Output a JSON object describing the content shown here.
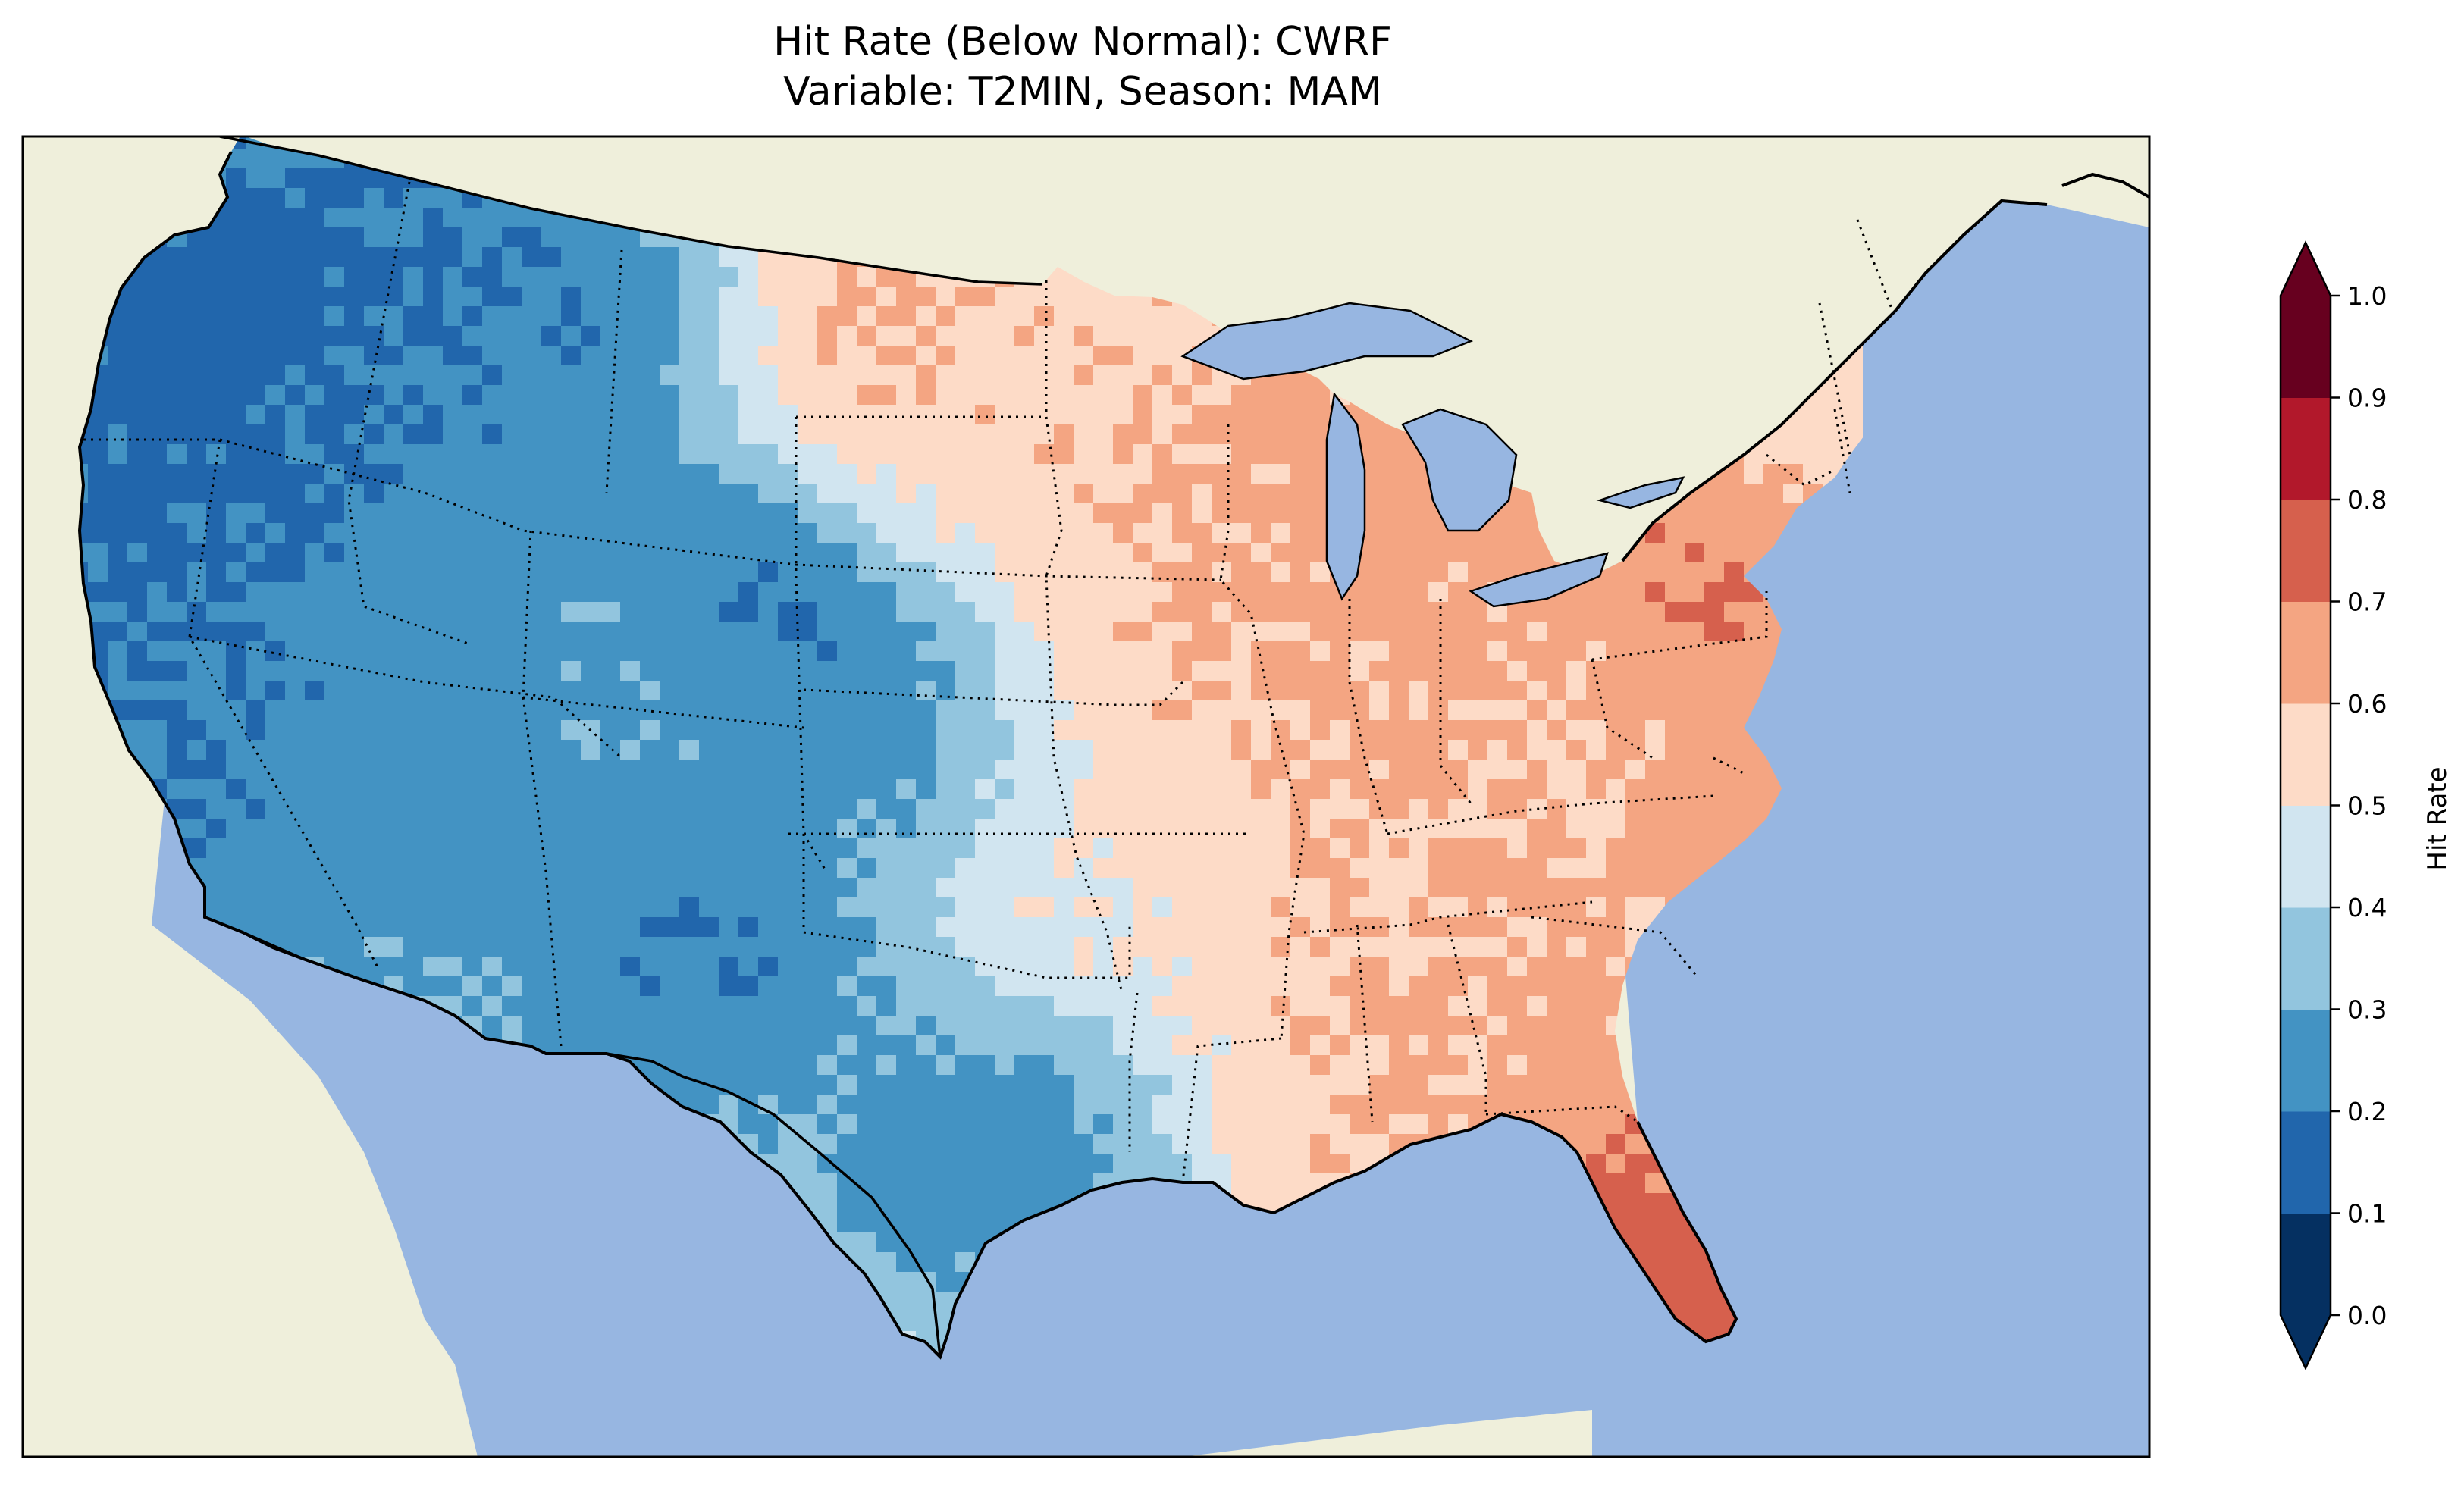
{
  "title": {
    "line1": "Hit Rate (Below Normal): CWRF",
    "line2": "Variable: T2MIN, Season: MAM"
  },
  "colorbar": {
    "label": "Hit Rate",
    "ticks": [
      "0.0",
      "0.1",
      "0.2",
      "0.3",
      "0.4",
      "0.5",
      "0.6",
      "0.7",
      "0.8",
      "0.9",
      "1.0"
    ],
    "colors": [
      "#053061",
      "#2166ac",
      "#4393c3",
      "#92c5de",
      "#d1e5f0",
      "#fddbc7",
      "#f4a582",
      "#d6604d",
      "#b2182b",
      "#67001f"
    ],
    "extend": "both"
  },
  "map": {
    "ocean_color": "#97b6e1",
    "land_color": "#efefdb",
    "lake_color": "#97b6e1"
  }
}
